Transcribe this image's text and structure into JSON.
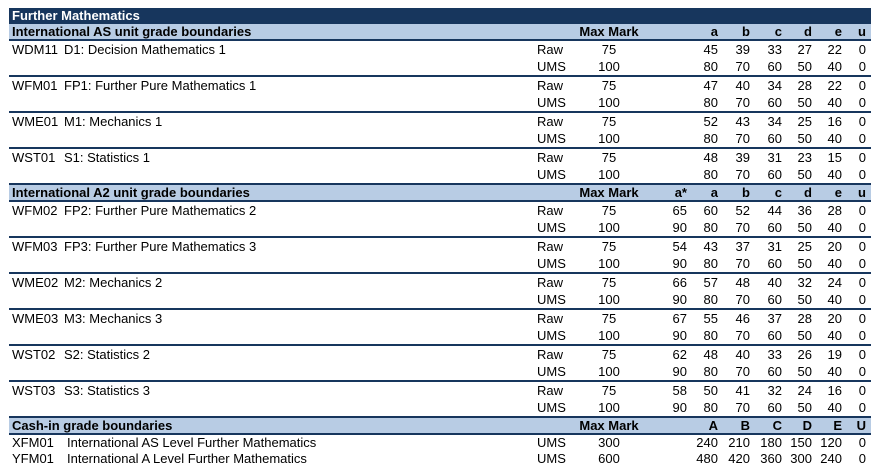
{
  "title": "Further Mathematics",
  "as": {
    "heading": "International AS unit grade boundaries",
    "max_label": "Max Mark",
    "grades": [
      "a",
      "b",
      "c",
      "d",
      "e",
      "u"
    ],
    "units": [
      {
        "code": "WDM11",
        "name": "D1: Decision Mathematics 1",
        "rows": [
          {
            "kind": "Raw",
            "max": "75",
            "vals": [
              "45",
              "39",
              "33",
              "27",
              "22",
              "0"
            ]
          },
          {
            "kind": "UMS",
            "max": "100",
            "vals": [
              "80",
              "70",
              "60",
              "50",
              "40",
              "0"
            ]
          }
        ]
      },
      {
        "code": "WFM01",
        "name": "FP1: Further Pure Mathematics 1",
        "rows": [
          {
            "kind": "Raw",
            "max": "75",
            "vals": [
              "47",
              "40",
              "34",
              "28",
              "22",
              "0"
            ]
          },
          {
            "kind": "UMS",
            "max": "100",
            "vals": [
              "80",
              "70",
              "60",
              "50",
              "40",
              "0"
            ]
          }
        ]
      },
      {
        "code": "WME01",
        "name": "M1: Mechanics 1",
        "rows": [
          {
            "kind": "Raw",
            "max": "75",
            "vals": [
              "52",
              "43",
              "34",
              "25",
              "16",
              "0"
            ]
          },
          {
            "kind": "UMS",
            "max": "100",
            "vals": [
              "80",
              "70",
              "60",
              "50",
              "40",
              "0"
            ]
          }
        ]
      },
      {
        "code": "WST01",
        "name": "S1: Statistics 1",
        "rows": [
          {
            "kind": "Raw",
            "max": "75",
            "vals": [
              "48",
              "39",
              "31",
              "23",
              "15",
              "0"
            ]
          },
          {
            "kind": "UMS",
            "max": "100",
            "vals": [
              "80",
              "70",
              "60",
              "50",
              "40",
              "0"
            ]
          }
        ]
      }
    ]
  },
  "a2": {
    "heading": "International A2 unit grade boundaries",
    "max_label": "Max Mark",
    "grades": [
      "a*",
      "a",
      "b",
      "c",
      "d",
      "e",
      "u"
    ],
    "units": [
      {
        "code": "WFM02",
        "name": "FP2: Further Pure Mathematics 2",
        "rows": [
          {
            "kind": "Raw",
            "max": "75",
            "vals": [
              "65",
              "60",
              "52",
              "44",
              "36",
              "28",
              "0"
            ]
          },
          {
            "kind": "UMS",
            "max": "100",
            "vals": [
              "90",
              "80",
              "70",
              "60",
              "50",
              "40",
              "0"
            ]
          }
        ]
      },
      {
        "code": "WFM03",
        "name": "FP3: Further Pure Mathematics 3",
        "rows": [
          {
            "kind": "Raw",
            "max": "75",
            "vals": [
              "54",
              "43",
              "37",
              "31",
              "25",
              "20",
              "0"
            ]
          },
          {
            "kind": "UMS",
            "max": "100",
            "vals": [
              "90",
              "80",
              "70",
              "60",
              "50",
              "40",
              "0"
            ]
          }
        ]
      },
      {
        "code": "WME02",
        "name": "M2: Mechanics 2",
        "rows": [
          {
            "kind": "Raw",
            "max": "75",
            "vals": [
              "66",
              "57",
              "48",
              "40",
              "32",
              "24",
              "0"
            ]
          },
          {
            "kind": "UMS",
            "max": "100",
            "vals": [
              "90",
              "80",
              "70",
              "60",
              "50",
              "40",
              "0"
            ]
          }
        ]
      },
      {
        "code": "WME03",
        "name": "M3: Mechanics 3",
        "rows": [
          {
            "kind": "Raw",
            "max": "75",
            "vals": [
              "67",
              "55",
              "46",
              "37",
              "28",
              "20",
              "0"
            ]
          },
          {
            "kind": "UMS",
            "max": "100",
            "vals": [
              "90",
              "80",
              "70",
              "60",
              "50",
              "40",
              "0"
            ]
          }
        ]
      },
      {
        "code": "WST02",
        "name": "S2: Statistics 2",
        "rows": [
          {
            "kind": "Raw",
            "max": "75",
            "vals": [
              "62",
              "48",
              "40",
              "33",
              "26",
              "19",
              "0"
            ]
          },
          {
            "kind": "UMS",
            "max": "100",
            "vals": [
              "90",
              "80",
              "70",
              "60",
              "50",
              "40",
              "0"
            ]
          }
        ]
      },
      {
        "code": "WST03",
        "name": "S3: Statistics 3",
        "rows": [
          {
            "kind": "Raw",
            "max": "75",
            "vals": [
              "58",
              "50",
              "41",
              "32",
              "24",
              "16",
              "0"
            ]
          },
          {
            "kind": "UMS",
            "max": "100",
            "vals": [
              "90",
              "80",
              "70",
              "60",
              "50",
              "40",
              "0"
            ]
          }
        ]
      }
    ]
  },
  "cashin": {
    "heading": "Cash-in grade boundaries",
    "max_label": "Max Mark",
    "grades": [
      "A",
      "B",
      "C",
      "D",
      "E",
      "U"
    ],
    "rows": [
      {
        "code": "XFM01",
        "name": "International AS Level Further Mathematics",
        "kind": "UMS",
        "max": "300",
        "vals": [
          "240",
          "210",
          "180",
          "150",
          "120",
          "0"
        ]
      },
      {
        "code": "YFM01",
        "name": "International A Level Further Mathematics",
        "kind": "UMS",
        "max": "600",
        "vals": [
          "480",
          "420",
          "360",
          "300",
          "240",
          "0"
        ]
      }
    ]
  }
}
